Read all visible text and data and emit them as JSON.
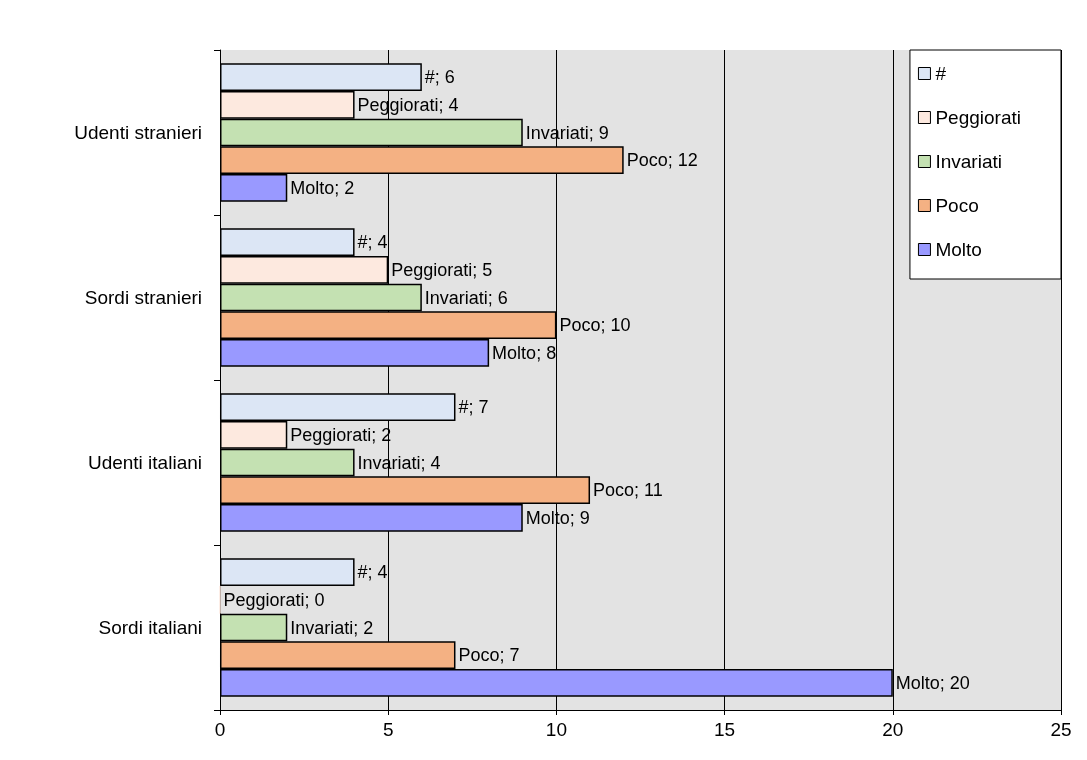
{
  "chart_data": {
    "type": "bar",
    "orientation": "horizontal",
    "categories": [
      "Udenti stranieri",
      "Sordi stranieri",
      "Udenti italiani",
      "Sordi italiani"
    ],
    "series": [
      {
        "name": "#",
        "color": "#dce6f5",
        "values": [
          6,
          4,
          7,
          4
        ],
        "value_labels": [
          "#; 6",
          "#; 4",
          "#; 7",
          "#; 4"
        ]
      },
      {
        "name": "Peggiorati",
        "color": "#fde9df",
        "values": [
          4,
          5,
          2,
          0
        ],
        "value_labels": [
          "Peggiorati; 4",
          "Peggiorati; 5",
          "Peggiorati; 2",
          "Peggiorati; 0"
        ]
      },
      {
        "name": "Invariati",
        "color": "#c4e1b2",
        "values": [
          9,
          6,
          4,
          2
        ],
        "value_labels": [
          "Invariati; 9",
          "Invariati; 6",
          "Invariati; 4",
          "Invariati; 2"
        ]
      },
      {
        "name": "Poco",
        "color": "#f4b183",
        "values": [
          12,
          10,
          11,
          7
        ],
        "value_labels": [
          "Poco; 12",
          "Poco; 10",
          "Poco; 11",
          "Poco; 7"
        ]
      },
      {
        "name": "Molto",
        "color": "#9999ff",
        "values": [
          2,
          8,
          9,
          20
        ],
        "value_labels": [
          "Molto; 2",
          "Molto; 8",
          "Molto; 9",
          "Molto; 20"
        ]
      }
    ],
    "xlim": [
      0,
      25
    ],
    "xticks": [
      0,
      5,
      10,
      15,
      20,
      25
    ],
    "grid": "x",
    "legend": "top right"
  }
}
